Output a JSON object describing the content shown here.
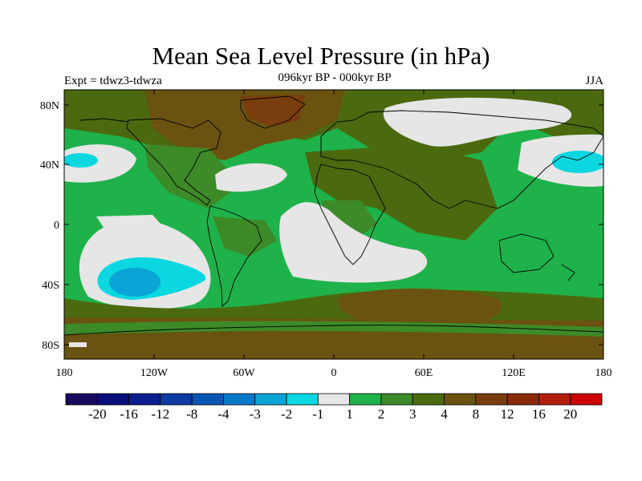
{
  "header": {
    "title": "Mean Sea Level Pressure (in hPa)",
    "subtitle": "096kyr BP - 000kyr BP",
    "left_label": "Expt = tdwz3-tdwza",
    "right_label": "JJA"
  },
  "axes": {
    "lat_ticks": [
      "80N",
      "40N",
      "0",
      "40S",
      "80S"
    ],
    "lon_ticks": [
      "180",
      "120W",
      "60W",
      "0",
      "60E",
      "120E",
      "180"
    ]
  },
  "colorbar": {
    "colors": [
      "#1a0a5e",
      "#0a0f7a",
      "#0a1e8f",
      "#0d3aa3",
      "#0a56b4",
      "#0a78c8",
      "#0aa4d6",
      "#0ad7e0",
      "#e6e6e6",
      "#1fb24a",
      "#3d8a28",
      "#4b6a0f",
      "#6a5210",
      "#7a3e0e",
      "#8a2a06",
      "#b31e0a",
      "#cc0000"
    ],
    "labels": [
      "-20",
      "-16",
      "-12",
      "-8",
      "-4",
      "-3",
      "-2",
      "-1",
      "1",
      "2",
      "3",
      "4",
      "8",
      "12",
      "16",
      "20"
    ]
  },
  "map_palette": {
    "ocean_base": "#1fb24a",
    "white_zone": "#e6e6e6",
    "cyan_zone": "#0ad7e0",
    "blue_zone": "#0aa4d6",
    "olive_3": "#3d8a28",
    "olive_4": "#4b6a0f",
    "brown_8": "#6a5210",
    "brown_12": "#7a3e0e"
  }
}
